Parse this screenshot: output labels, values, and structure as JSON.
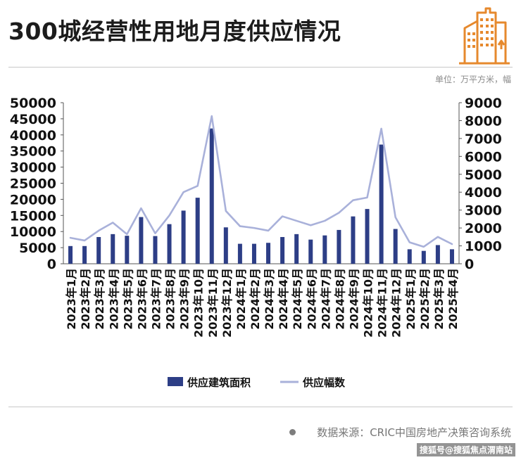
{
  "header": {
    "title": "300城经营性用地月度供应情况",
    "unit": "单位：万平方米，幅"
  },
  "footer": {
    "source": "数据来源：CRIC中国房地产决策咨询系统",
    "watermark": "搜狐号@搜狐焦点渭南站"
  },
  "colors": {
    "bar": "#2d3e86",
    "line": "#a9b1da",
    "logo": "#e6892d"
  },
  "icons": {
    "logo": "building-icon"
  },
  "chart_data": {
    "type": "bar",
    "categories": [
      "2023年1月",
      "2023年2月",
      "2023年3月",
      "2023年4月",
      "2023年5月",
      "2023年6月",
      "2023年7月",
      "2023年8月",
      "2023年9月",
      "2023年10月",
      "2023年11月",
      "2023年12月",
      "2024年1月",
      "2024年2月",
      "2024年3月",
      "2024年4月",
      "2024年5月",
      "2024年6月",
      "2024年7月",
      "2024年8月",
      "2024年9月",
      "2024年10月",
      "2024年11月",
      "2024年12月",
      "2025年1月",
      "2025年2月",
      "2025年3月",
      "2025年4月"
    ],
    "series": [
      {
        "name": "供应建筑面积",
        "type": "bar",
        "axis": "left",
        "values": [
          5500,
          5500,
          8300,
          9200,
          8700,
          14500,
          8600,
          12300,
          16500,
          20500,
          42000,
          11300,
          6200,
          6200,
          6500,
          8300,
          9200,
          7500,
          8800,
          10500,
          14700,
          17000,
          37000,
          10800,
          4500,
          4000,
          5800,
          4500
        ]
      },
      {
        "name": "供应幅数",
        "type": "line",
        "axis": "right",
        "values": [
          1450,
          1300,
          1850,
          2300,
          1650,
          3100,
          1700,
          2700,
          4000,
          4350,
          8250,
          2950,
          2100,
          2000,
          1850,
          2650,
          2400,
          2150,
          2400,
          2850,
          3550,
          3700,
          7550,
          2600,
          1200,
          950,
          1500,
          1100
        ]
      }
    ],
    "yleft": {
      "lim": [
        0,
        50000
      ],
      "ticks": [
        0,
        5000,
        10000,
        15000,
        20000,
        25000,
        30000,
        35000,
        40000,
        45000,
        50000
      ]
    },
    "yright": {
      "lim": [
        0,
        9000
      ],
      "ticks": [
        0,
        1000,
        2000,
        3000,
        4000,
        5000,
        6000,
        7000,
        8000,
        9000
      ]
    },
    "legend": "bottom-center",
    "grid": false
  }
}
